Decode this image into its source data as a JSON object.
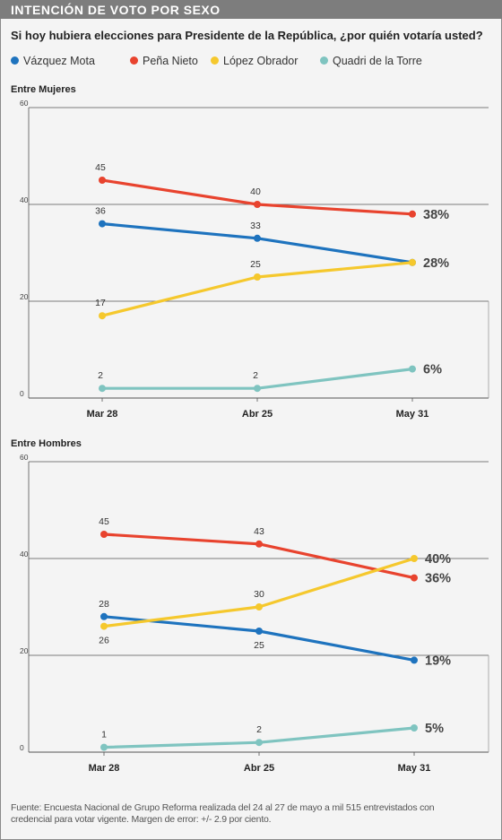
{
  "header": {
    "title": "INTENCIÓN DE VOTO POR SEXO"
  },
  "question": "Si hoy hubiera elecciones para Presidente de la República, ¿por quién votaría usted?",
  "legend": [
    {
      "label": "Vázquez Mota",
      "color": "#1e73be"
    },
    {
      "label": "Peña Nieto",
      "color": "#e8432e"
    },
    {
      "label": "López Obrador",
      "color": "#f5c82d"
    },
    {
      "label": "Quadri de la Torre",
      "color": "#7fc4c0"
    }
  ],
  "chart_data": [
    {
      "type": "line",
      "title": "Entre Mujeres",
      "categories": [
        "Mar 28",
        "Abr 25",
        "May 31"
      ],
      "ylim": [
        0,
        60
      ],
      "yticks": [
        "60",
        "40",
        "20",
        "0"
      ],
      "grid": true,
      "series": [
        {
          "name": "Vázquez Mota",
          "color": "#1e73be",
          "values": [
            36,
            33,
            28
          ],
          "labels": [
            "36",
            "33",
            "28%"
          ]
        },
        {
          "name": "Peña Nieto",
          "color": "#e8432e",
          "values": [
            45,
            40,
            38
          ],
          "labels": [
            "45",
            "40",
            "38%"
          ]
        },
        {
          "name": "López Obrador",
          "color": "#f5c82d",
          "values": [
            17,
            25,
            28
          ],
          "labels": [
            "17",
            "25",
            ""
          ]
        },
        {
          "name": "Quadri de la Torre",
          "color": "#7fc4c0",
          "values": [
            2,
            2,
            6
          ],
          "labels": [
            "2",
            "2",
            "6%"
          ]
        }
      ]
    },
    {
      "type": "line",
      "title": "Entre Hombres",
      "categories": [
        "Mar 28",
        "Abr 25",
        "May 31"
      ],
      "ylim": [
        0,
        60
      ],
      "yticks": [
        "60",
        "40",
        "20",
        "0"
      ],
      "grid": true,
      "series": [
        {
          "name": "Vázquez Mota",
          "color": "#1e73be",
          "values": [
            28,
            25,
            19
          ],
          "labels": [
            "28",
            "25",
            "19%"
          ]
        },
        {
          "name": "Peña Nieto",
          "color": "#e8432e",
          "values": [
            45,
            43,
            36
          ],
          "labels": [
            "45",
            "43",
            "36%"
          ]
        },
        {
          "name": "López Obrador",
          "color": "#f5c82d",
          "values": [
            26,
            30,
            40
          ],
          "labels": [
            "26",
            "30",
            "40%"
          ]
        },
        {
          "name": "Quadri de la Torre",
          "color": "#7fc4c0",
          "values": [
            1,
            2,
            5
          ],
          "labels": [
            "1",
            "2",
            "5%"
          ]
        }
      ]
    }
  ],
  "footer": "Fuente: Encuesta Nacional de Grupo Reforma realizada del 24 al 27 de mayo a mil 515 entrevistados con credencial para votar vigente. Margen de error: +/- 2.9 por ciento."
}
